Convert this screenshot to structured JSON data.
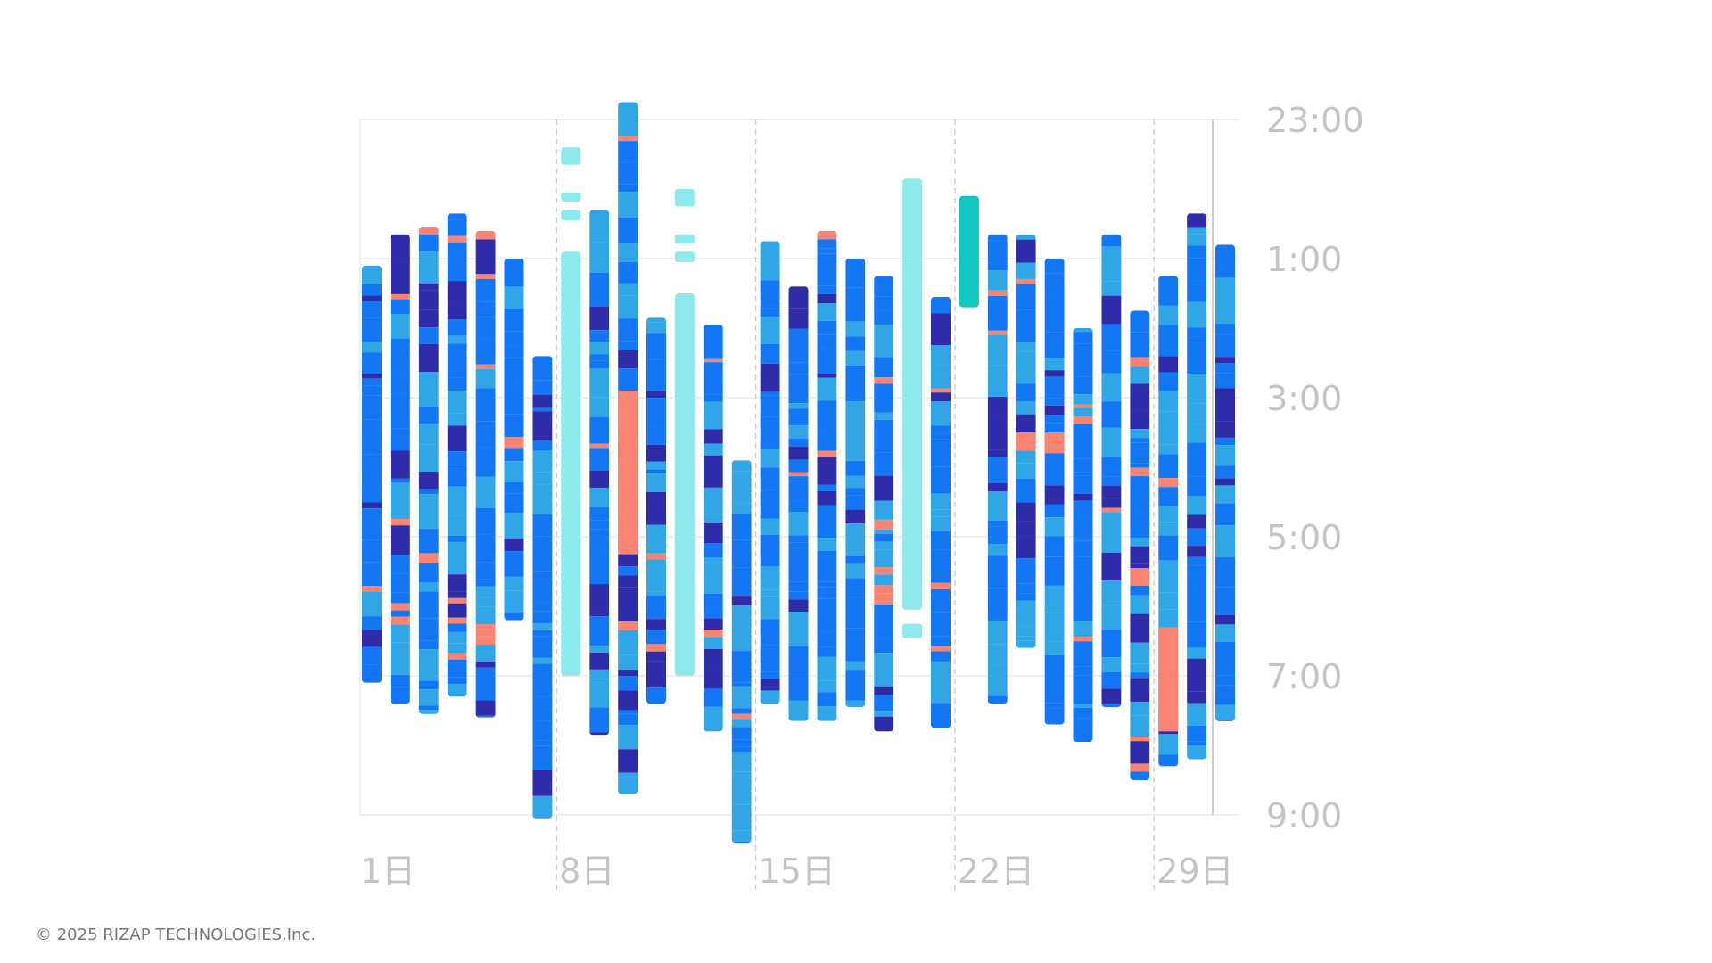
{
  "chart_data": {
    "type": "bar",
    "subtype": "sleep-stage-timeline",
    "title": "",
    "xlabel": "",
    "ylabel": "",
    "x_tick_labels": [
      "1日",
      "8日",
      "15日",
      "22日",
      "29日"
    ],
    "x_tick_days": [
      1,
      8,
      15,
      22,
      29
    ],
    "y_tick_labels": [
      "23:00",
      "1:00",
      "3:00",
      "5:00",
      "7:00",
      "9:00"
    ],
    "y_tick_hours": [
      0,
      2,
      4,
      6,
      8,
      10
    ],
    "ylim_hours_after_2200": [
      1,
      11
    ],
    "grid": true,
    "stage_colors": {
      "deep": "#2e2ca8",
      "light": "#1376f5",
      "rem": "#30a6e6",
      "awake": "#fa8472",
      "unscored": "#8eeaea",
      "unscored_dark": "#0fc6c0"
    },
    "days": [
      {
        "day": 1,
        "start": 3.1,
        "end": 9.1,
        "type": "staged"
      },
      {
        "day": 2,
        "start": 2.65,
        "end": 9.4,
        "type": "staged"
      },
      {
        "day": 3,
        "start": 2.55,
        "end": 9.55,
        "type": "staged"
      },
      {
        "day": 4,
        "start": 2.35,
        "end": 9.3,
        "type": "staged"
      },
      {
        "day": 5,
        "start": 2.6,
        "end": 9.6,
        "type": "staged"
      },
      {
        "day": 6,
        "start": 3.0,
        "end": 8.2,
        "type": "staged"
      },
      {
        "day": 7,
        "start": 4.4,
        "end": 11.05,
        "type": "staged"
      },
      {
        "day": 8,
        "start": 1.4,
        "end": 9.0,
        "type": "unscored"
      },
      {
        "day": 9,
        "start": 2.3,
        "end": 9.85,
        "type": "staged"
      },
      {
        "day": 10,
        "start": 0.75,
        "end": 10.7,
        "type": "staged"
      },
      {
        "day": 11,
        "start": 3.85,
        "end": 9.4,
        "type": "staged"
      },
      {
        "day": 12,
        "start": 2.0,
        "end": 9.0,
        "type": "unscored"
      },
      {
        "day": 13,
        "start": 3.95,
        "end": 9.8,
        "type": "staged"
      },
      {
        "day": 14,
        "start": 5.9,
        "end": 11.4,
        "type": "staged"
      },
      {
        "day": 15,
        "start": 2.75,
        "end": 9.4,
        "type": "staged"
      },
      {
        "day": 16,
        "start": 3.4,
        "end": 9.65,
        "type": "staged"
      },
      {
        "day": 17,
        "start": 2.6,
        "end": 9.65,
        "type": "staged"
      },
      {
        "day": 18,
        "start": 3.0,
        "end": 9.45,
        "type": "staged"
      },
      {
        "day": 19,
        "start": 3.25,
        "end": 9.8,
        "type": "staged"
      },
      {
        "day": 20,
        "start": 1.85,
        "end": 8.75,
        "type": "unscored"
      },
      {
        "day": 21,
        "start": 3.55,
        "end": 9.75,
        "type": "staged"
      },
      {
        "day": 22,
        "start": 2.1,
        "end": 3.7,
        "type": "unscored_dark"
      },
      {
        "day": 23,
        "start": 2.65,
        "end": 9.4,
        "type": "staged"
      },
      {
        "day": 24,
        "start": 2.65,
        "end": 8.6,
        "type": "staged"
      },
      {
        "day": 25,
        "start": 3.0,
        "end": 9.7,
        "type": "staged"
      },
      {
        "day": 26,
        "start": 4.0,
        "end": 9.95,
        "type": "staged"
      },
      {
        "day": 27,
        "start": 2.65,
        "end": 9.45,
        "type": "staged"
      },
      {
        "day": 28,
        "start": 3.75,
        "end": 10.5,
        "type": "staged"
      },
      {
        "day": 29,
        "start": 3.25,
        "end": 10.3,
        "type": "staged"
      },
      {
        "day": 30,
        "start": 2.35,
        "end": 10.2,
        "type": "staged"
      },
      {
        "day": 31,
        "start": 2.8,
        "end": 9.65,
        "type": "staged"
      }
    ]
  },
  "footer": {
    "copyright": "© 2025 RIZAP TECHNOLOGIES,Inc."
  }
}
